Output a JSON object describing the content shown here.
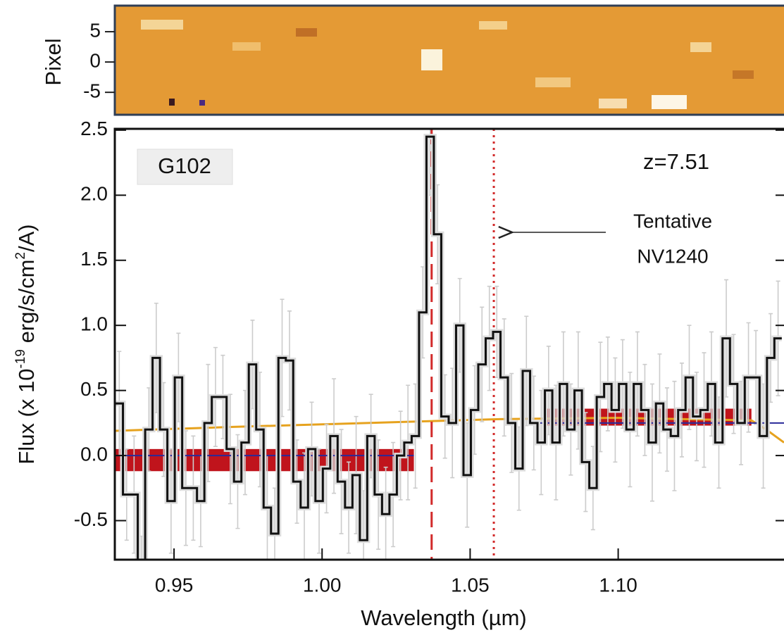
{
  "chart_data": [
    {
      "type": "image",
      "ylabel": "Pixel",
      "ylim": [
        -8.7,
        9.3
      ],
      "yticks": [
        5,
        0,
        -5
      ]
    },
    {
      "type": "step",
      "xlabel": "Wavelength (µm)",
      "ylabel_parts": [
        "Flux (x 10",
        "-19",
        " erg/s/cm",
        "2",
        "/A)"
      ],
      "xlim": [
        0.93,
        1.156
      ],
      "ylim": [
        -0.8,
        2.51
      ],
      "xticks": [
        0.95,
        {
          "value": 1,
          "label": "1.00"
        },
        1.05,
        {
          "value": 1.1,
          "label": "1.10"
        }
      ],
      "yticks": [
        2.5,
        {
          "value": 2,
          "label": "2.0"
        },
        1.5,
        {
          "value": 1,
          "label": "1.0"
        },
        0.5,
        {
          "value": 0,
          "label": "0.0"
        },
        -0.5
      ],
      "x": [
        0.9315,
        0.934,
        0.9365,
        0.939,
        0.9415,
        0.944,
        0.9465,
        0.949,
        0.9515,
        0.954,
        0.9565,
        0.959,
        0.9615,
        0.964,
        0.9665,
        0.969,
        0.9715,
        0.974,
        0.9765,
        0.979,
        0.9815,
        0.984,
        0.9865,
        0.989,
        0.9915,
        0.994,
        0.9965,
        0.999,
        1.0015,
        1.004,
        1.0065,
        1.009,
        1.0115,
        1.014,
        1.0165,
        1.019,
        1.0215,
        1.024,
        1.0265,
        1.029,
        1.0315,
        1.034,
        1.0365,
        1.039,
        1.0415,
        1.044,
        1.0465,
        1.049,
        1.0515,
        1.054,
        1.0565,
        1.059,
        1.0615,
        1.064,
        1.0665,
        1.069,
        1.0715,
        1.074,
        1.0765,
        1.079,
        1.0815,
        1.084,
        1.0865,
        1.089,
        1.0915,
        1.094,
        1.0965,
        1.099,
        1.1015,
        1.104,
        1.1065,
        1.109,
        1.1115,
        1.114,
        1.1165,
        1.119,
        1.1215,
        1.124,
        1.1265,
        1.129,
        1.1315,
        1.134,
        1.1365,
        1.139,
        1.1415,
        1.144,
        1.1465,
        1.149,
        1.1515,
        1.154
      ],
      "values": [
        0.4,
        -0.3,
        -0.3,
        -1.0,
        0.2,
        0.75,
        0.2,
        -0.35,
        0.6,
        -0.25,
        -0.25,
        -0.35,
        0.25,
        0.45,
        0.45,
        0.05,
        -0.2,
        0.1,
        0.7,
        0.2,
        -0.4,
        -0.6,
        0.75,
        0.73,
        -0.2,
        -0.4,
        0.05,
        -0.35,
        -0.1,
        0.15,
        -0.2,
        -0.4,
        -0.15,
        -0.65,
        0.15,
        -0.3,
        -0.45,
        -0.3,
        0.0,
        0.1,
        0.15,
        1.1,
        2.45,
        1.7,
        0.3,
        0.25,
        1.0,
        -0.15,
        0.35,
        0.7,
        0.9,
        0.95,
        0.6,
        0.25,
        -0.1,
        0.65,
        0.25,
        0.1,
        0.5,
        0.1,
        0.55,
        0.2,
        0.5,
        -0.05,
        -0.25,
        0.45,
        0.55,
        0.35,
        0.55,
        0.2,
        0.55,
        0.35,
        0.1,
        0.4,
        0.2,
        0.15,
        0.35,
        0.6,
        0.3,
        0.35,
        0.55,
        0.1,
        0.9,
        0.55,
        0.25,
        0.6,
        0.6,
        0.15,
        0.75,
        0.9
      ],
      "errors": [
        0.4,
        0.35,
        0.45,
        0.38,
        0.32,
        0.42,
        0.36,
        0.4,
        0.34,
        0.44,
        0.4,
        0.35,
        0.45,
        0.38,
        0.32,
        0.42,
        0.36,
        0.4,
        0.34,
        0.44,
        0.4,
        0.35,
        0.45,
        0.38,
        0.32,
        0.42,
        0.36,
        0.4,
        0.34,
        0.44,
        0.4,
        0.35,
        0.45,
        0.38,
        0.32,
        0.42,
        0.36,
        0.4,
        0.34,
        0.44,
        0.4,
        0.35,
        0.45,
        0.38,
        0.32,
        0.42,
        0.36,
        0.4,
        0.34,
        0.44,
        0.4,
        0.35,
        0.45,
        0.38,
        0.32,
        0.42,
        0.36,
        0.4,
        0.34,
        0.44,
        0.4,
        0.35,
        0.45,
        0.38,
        0.32,
        0.42,
        0.36,
        0.4,
        0.34,
        0.44,
        0.4,
        0.35,
        0.45,
        0.38,
        0.32,
        0.42,
        0.36,
        0.4,
        0.34,
        0.44,
        0.4,
        0.35,
        0.45,
        0.38,
        0.32,
        0.42,
        0.36,
        0.4,
        0.34,
        0.44
      ],
      "color": "#111111",
      "error_color": "#cccccc",
      "model": {
        "color": "#e6a21e",
        "x": [
          0.93,
          0.97,
          1.0,
          1.03,
          1.06,
          1.1,
          1.145,
          1.15,
          1.156
        ],
        "y": [
          0.19,
          0.22,
          0.24,
          0.26,
          0.28,
          0.29,
          0.27,
          0.2,
          0.1
        ]
      },
      "bands": [
        {
          "x": [
            0.93,
            1.031
          ],
          "y": [
            -0.12,
            0.05
          ],
          "color": "#c0141c"
        },
        {
          "x": [
            1.075,
            1.145
          ],
          "y": [
            0.23,
            0.36
          ],
          "color": "#c0141c"
        }
      ],
      "continuum": [
        {
          "x": [
            0.93,
            1.031
          ],
          "y": 0,
          "color": "#2a2a9a"
        },
        {
          "x": [
            1.07,
            1.156
          ],
          "y": 0.25,
          "color": "#2a2a9a"
        }
      ],
      "vlines": [
        {
          "x": 1.037,
          "style": "dashed",
          "color": "#d22a2a"
        },
        {
          "x": 1.058,
          "style": "dotted",
          "color": "#d22a2a"
        }
      ],
      "annotations": {
        "grism": "G102",
        "redshift": "z=7.51",
        "line1": "Tentative",
        "line2": "NV1240"
      }
    }
  ]
}
